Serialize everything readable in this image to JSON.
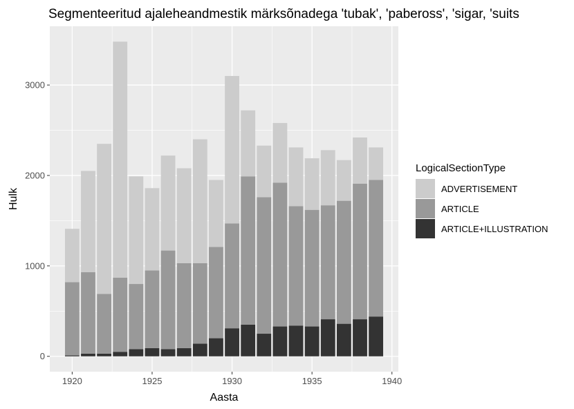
{
  "chart_data": {
    "type": "bar",
    "stacked": true,
    "title": "Segmenteeritud ajaleheandmestik märksõnadega 'tubak', 'pabeross', 'sigar, 'suits",
    "xlabel": "Aasta",
    "ylabel": "Hulk",
    "xlim": [
      1918.6,
      1940.4
    ],
    "ylim": [
      -170,
      3650
    ],
    "x_ticks": [
      1920,
      1925,
      1930,
      1935,
      1940
    ],
    "y_ticks": [
      0,
      1000,
      2000,
      3000
    ],
    "x": [
      1920,
      1921,
      1922,
      1923,
      1924,
      1925,
      1926,
      1927,
      1928,
      1929,
      1930,
      1931,
      1932,
      1933,
      1934,
      1935,
      1936,
      1937,
      1938,
      1939
    ],
    "series": [
      {
        "name": "ARTICLE+ILLUSTRATION",
        "color": "#333333",
        "values": [
          10,
          30,
          30,
          50,
          80,
          90,
          80,
          90,
          140,
          200,
          310,
          350,
          250,
          330,
          340,
          330,
          410,
          360,
          410,
          440
        ]
      },
      {
        "name": "ARTICLE",
        "color": "#999999",
        "values": [
          810,
          900,
          660,
          820,
          720,
          860,
          1090,
          940,
          890,
          1010,
          1160,
          1640,
          1510,
          1590,
          1320,
          1290,
          1260,
          1360,
          1500,
          1510
        ]
      },
      {
        "name": "ADVERTISEMENT",
        "color": "#cccccc",
        "values": [
          590,
          1120,
          1660,
          2610,
          1190,
          910,
          1050,
          1050,
          1370,
          740,
          1630,
          730,
          570,
          660,
          650,
          570,
          610,
          450,
          510,
          360
        ]
      }
    ],
    "legend": {
      "title": "LogicalSectionType",
      "position": "right",
      "items": [
        {
          "label": "ADVERTISEMENT",
          "color": "#cccccc"
        },
        {
          "label": "ARTICLE",
          "color": "#999999"
        },
        {
          "label": "ARTICLE+ILLUSTRATION",
          "color": "#333333"
        }
      ]
    },
    "panel_background": "#ebebeb",
    "grid": true
  }
}
